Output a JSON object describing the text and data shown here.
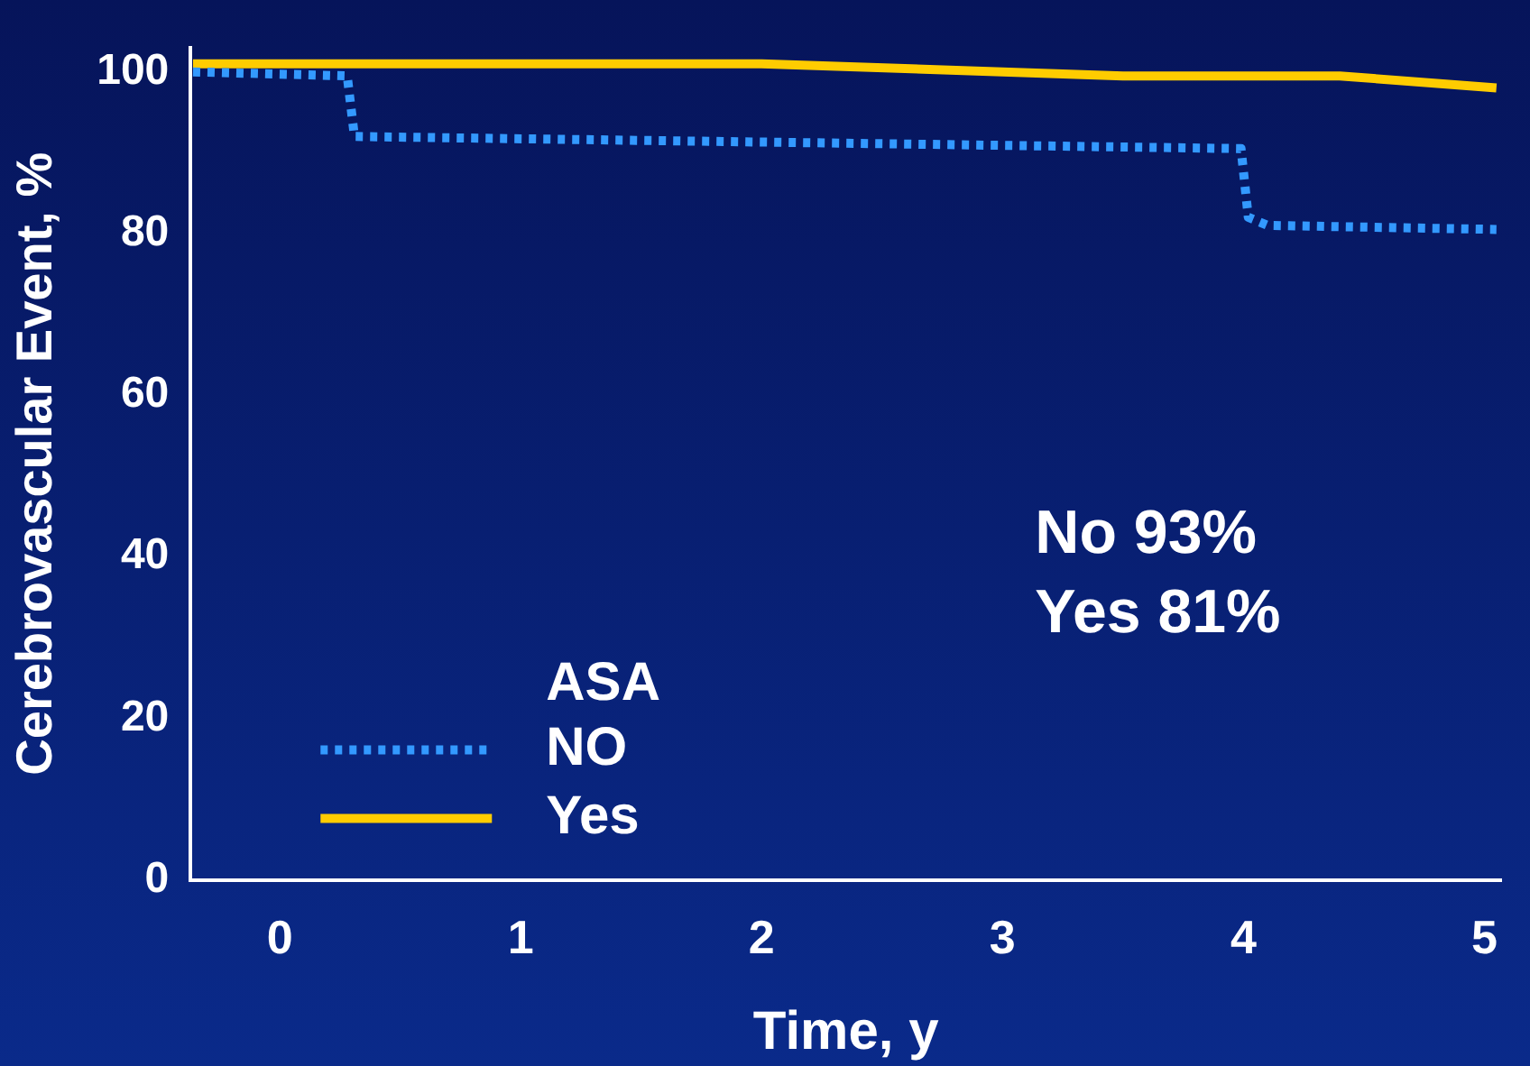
{
  "chart_data": {
    "type": "line",
    "xlabel": "Time, y",
    "ylabel": "Cerebrovascular Event, %",
    "legend_title": "ASA",
    "legend": "bottom left",
    "grid": false,
    "marker": "none",
    "xlim": [
      -0.37,
      5.07
    ],
    "xticks": [
      0,
      1,
      2,
      3,
      4,
      5
    ],
    "ylim": [
      0,
      103
    ],
    "yticks": [
      0,
      20,
      40,
      60,
      80,
      100
    ],
    "annotations": [
      "No 93%",
      "Yes 81%"
    ],
    "series": [
      {
        "name": "NO",
        "color": "#3399ff",
        "line_style": "dotted",
        "x": [
          -0.36,
          0.28,
          0.31,
          3.99,
          4.02,
          4.1,
          5.05
        ],
        "values": [
          100,
          99.5,
          92,
          90.5,
          82,
          81,
          80.5
        ]
      },
      {
        "name": "Yes",
        "color": "#ffcc00",
        "line_style": "solid",
        "x": [
          -0.36,
          -0.3,
          2,
          3,
          3.5,
          4.4,
          5.05
        ],
        "values": [
          101,
          101,
          101,
          100,
          99.5,
          99.5,
          98
        ]
      }
    ]
  }
}
